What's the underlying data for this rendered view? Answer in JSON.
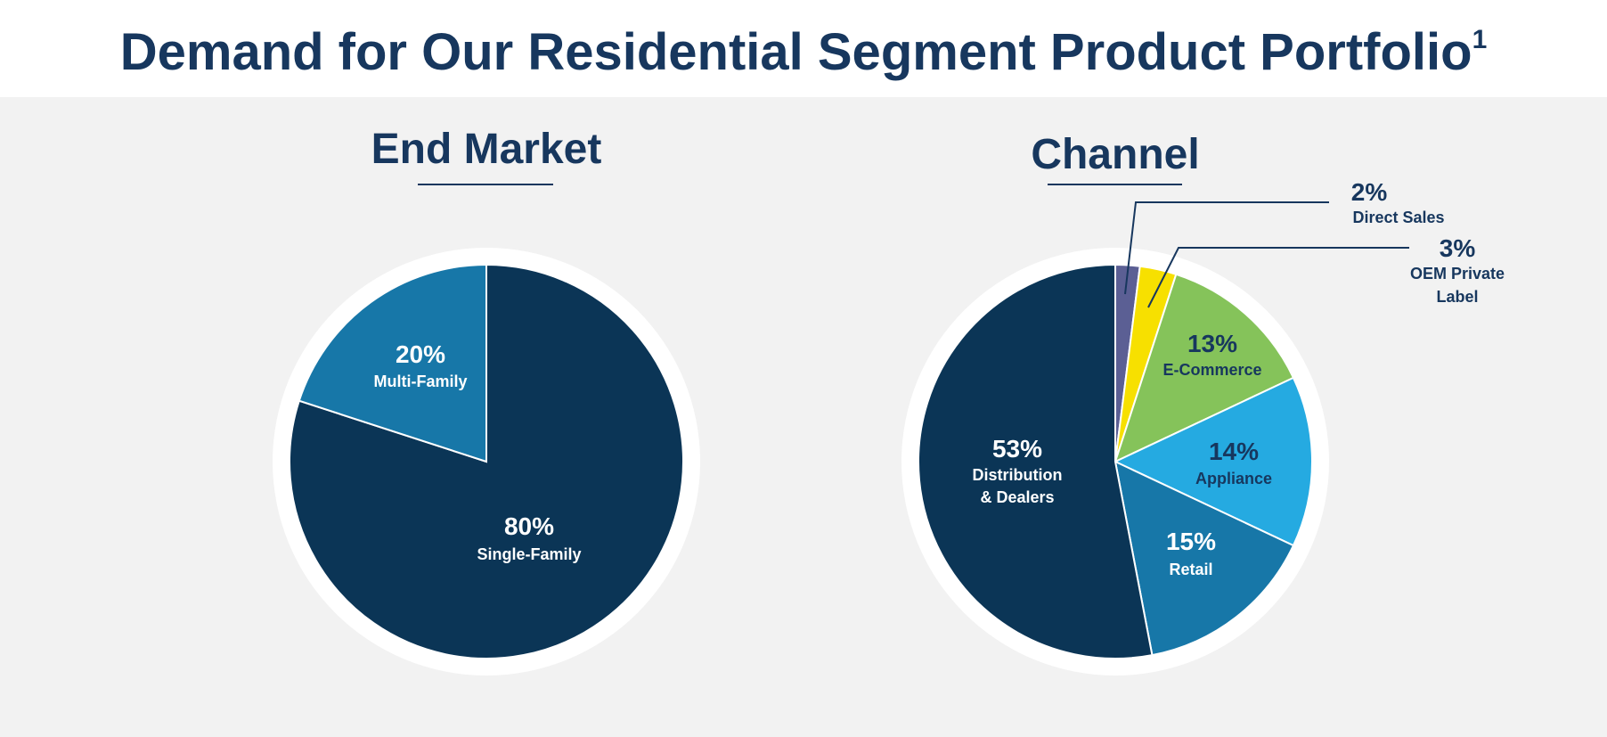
{
  "title": "Demand for Our Residential Segment Product Portfolio",
  "title_superscript": "1",
  "colors": {
    "title": "#17375e",
    "background": "#f2f2f2",
    "navy": "#0b3556"
  },
  "chart_data": [
    {
      "type": "pie",
      "title": "End Market",
      "slices": [
        {
          "label": "Single-Family",
          "pct_label": "80%",
          "value": 80,
          "color": "#0b3556",
          "text_color": "#ffffff"
        },
        {
          "label": "Multi-Family",
          "pct_label": "20%",
          "value": 20,
          "color": "#1777a8",
          "text_color": "#ffffff"
        }
      ]
    },
    {
      "type": "pie",
      "title": "Channel",
      "slices": [
        {
          "label": "Direct Sales",
          "pct_label": "2%",
          "value": 2,
          "color": "#5b5f94",
          "text_color": "#17375e"
        },
        {
          "label": "OEM Private Label",
          "label_lines": [
            "OEM Private",
            "Label"
          ],
          "pct_label": "3%",
          "value": 3,
          "color": "#f7e000",
          "text_color": "#17375e"
        },
        {
          "label": "E-Commerce",
          "pct_label": "13%",
          "value": 13,
          "color": "#85c35a",
          "text_color": "#17375e"
        },
        {
          "label": "Appliance",
          "pct_label": "14%",
          "value": 14,
          "color": "#25aae1",
          "text_color": "#17375e"
        },
        {
          "label": "Retail",
          "pct_label": "15%",
          "value": 15,
          "color": "#1777a8",
          "text_color": "#ffffff"
        },
        {
          "label": "Distribution & Dealers",
          "label_lines": [
            "Distribution",
            "& Dealers"
          ],
          "pct_label": "53%",
          "value": 53,
          "color": "#0b3556",
          "text_color": "#ffffff"
        }
      ]
    }
  ]
}
